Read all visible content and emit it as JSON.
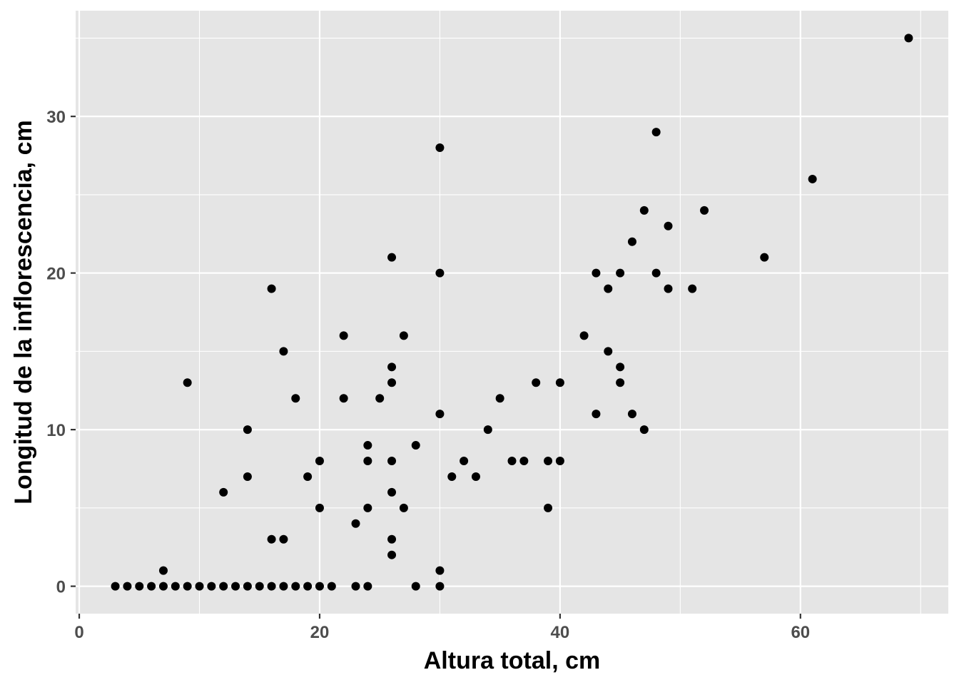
{
  "chart_data": {
    "type": "scatter",
    "title": "",
    "xlabel": "Altura total, cm",
    "ylabel": "Longitud de la inflorescencia, cm",
    "xlim": [
      -0.3,
      72.3
    ],
    "ylim": [
      -1.75,
      36.75
    ],
    "x_ticks": [
      0,
      20,
      40,
      60
    ],
    "y_ticks": [
      0,
      10,
      20,
      30
    ],
    "x_minor": [
      10,
      30,
      50,
      70
    ],
    "y_minor": [
      5,
      15,
      25,
      35
    ],
    "grid": true,
    "legend": "none",
    "colors": {
      "panel": "#e5e5e5",
      "grid": "#ffffff",
      "point": "#000000",
      "tick_text": "#4d4d4d"
    },
    "points": [
      [
        3,
        0
      ],
      [
        4,
        0
      ],
      [
        5,
        0
      ],
      [
        6,
        0
      ],
      [
        7,
        0
      ],
      [
        8,
        0
      ],
      [
        9,
        0
      ],
      [
        10,
        0
      ],
      [
        11,
        0
      ],
      [
        12,
        0
      ],
      [
        13,
        0
      ],
      [
        14,
        0
      ],
      [
        15,
        0
      ],
      [
        16,
        0
      ],
      [
        17,
        0
      ],
      [
        18,
        0
      ],
      [
        19,
        0
      ],
      [
        20,
        0
      ],
      [
        21,
        0
      ],
      [
        23,
        0
      ],
      [
        24,
        0
      ],
      [
        28,
        0
      ],
      [
        30,
        0
      ],
      [
        7,
        1
      ],
      [
        30,
        1
      ],
      [
        26,
        2
      ],
      [
        16,
        3
      ],
      [
        17,
        3
      ],
      [
        26,
        3
      ],
      [
        23,
        4
      ],
      [
        20,
        5
      ],
      [
        24,
        5
      ],
      [
        27,
        5
      ],
      [
        39,
        5
      ],
      [
        12,
        6
      ],
      [
        26,
        6
      ],
      [
        14,
        7
      ],
      [
        19,
        7
      ],
      [
        31,
        7
      ],
      [
        33,
        7
      ],
      [
        20,
        8
      ],
      [
        24,
        8
      ],
      [
        26,
        8
      ],
      [
        32,
        8
      ],
      [
        36,
        8
      ],
      [
        37,
        8
      ],
      [
        39,
        8
      ],
      [
        40,
        8
      ],
      [
        24,
        9
      ],
      [
        28,
        9
      ],
      [
        14,
        10
      ],
      [
        34,
        10
      ],
      [
        47,
        10
      ],
      [
        30,
        11
      ],
      [
        43,
        11
      ],
      [
        46,
        11
      ],
      [
        18,
        12
      ],
      [
        22,
        12
      ],
      [
        25,
        12
      ],
      [
        35,
        12
      ],
      [
        9,
        13
      ],
      [
        26,
        13
      ],
      [
        38,
        13
      ],
      [
        40,
        13
      ],
      [
        45,
        13
      ],
      [
        26,
        14
      ],
      [
        45,
        14
      ],
      [
        17,
        15
      ],
      [
        44,
        15
      ],
      [
        22,
        16
      ],
      [
        27,
        16
      ],
      [
        42,
        16
      ],
      [
        16,
        19
      ],
      [
        44,
        19
      ],
      [
        49,
        19
      ],
      [
        51,
        19
      ],
      [
        30,
        20
      ],
      [
        43,
        20
      ],
      [
        45,
        20
      ],
      [
        48,
        20
      ],
      [
        26,
        21
      ],
      [
        57,
        21
      ],
      [
        46,
        22
      ],
      [
        49,
        23
      ],
      [
        47,
        24
      ],
      [
        52,
        24
      ],
      [
        61,
        26
      ],
      [
        30,
        28
      ],
      [
        48,
        29
      ],
      [
        69,
        35
      ]
    ]
  }
}
